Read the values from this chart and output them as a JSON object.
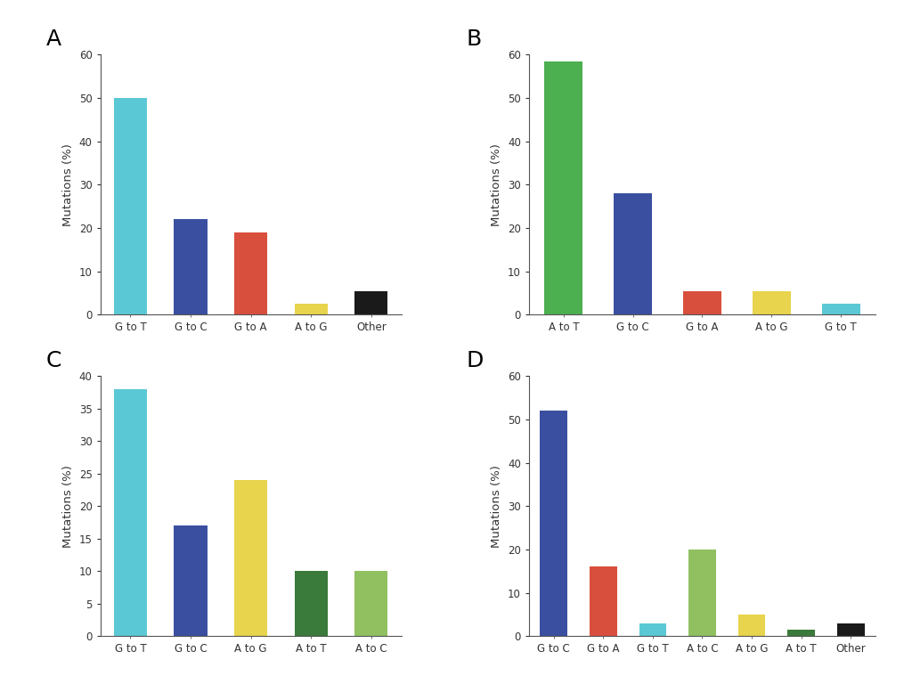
{
  "panels": [
    {
      "label": "A",
      "categories": [
        "G to T",
        "G to C",
        "G to A",
        "A to G",
        "Other"
      ],
      "values": [
        50,
        22,
        19,
        2.5,
        5.5
      ],
      "colors": [
        "#5BC8D5",
        "#3A4FA0",
        "#D94F3D",
        "#E8D44D",
        "#1A1A1A"
      ],
      "ylim": [
        0,
        60
      ],
      "yticks": [
        0,
        10,
        20,
        30,
        40,
        50,
        60
      ]
    },
    {
      "label": "B",
      "categories": [
        "A to T",
        "G to C",
        "G to A",
        "A to G",
        "G to T"
      ],
      "values": [
        58.5,
        28,
        5.5,
        5.5,
        2.5
      ],
      "colors": [
        "#4CAF50",
        "#3A4FA0",
        "#D94F3D",
        "#E8D44D",
        "#5BC8D5"
      ],
      "ylim": [
        0,
        60
      ],
      "yticks": [
        0,
        10,
        20,
        30,
        40,
        50,
        60
      ]
    },
    {
      "label": "C",
      "categories": [
        "G to T",
        "G to C",
        "A to G",
        "A to T",
        "A to C"
      ],
      "values": [
        38,
        17,
        24,
        10,
        10
      ],
      "colors": [
        "#5BC8D5",
        "#3A4FA0",
        "#E8D44D",
        "#3A7A3A",
        "#90C060"
      ],
      "ylim": [
        0,
        40
      ],
      "yticks": [
        0,
        5,
        10,
        15,
        20,
        25,
        30,
        35,
        40
      ]
    },
    {
      "label": "D",
      "categories": [
        "G to C",
        "G to A",
        "G to T",
        "A to C",
        "A to G",
        "A to T",
        "Other"
      ],
      "values": [
        52,
        16,
        3,
        20,
        5,
        1.5,
        3
      ],
      "colors": [
        "#3A4FA0",
        "#D94F3D",
        "#5BC8D5",
        "#90C060",
        "#E8D44D",
        "#3A7A3A",
        "#1A1A1A"
      ],
      "ylim": [
        0,
        60
      ],
      "yticks": [
        0,
        10,
        20,
        30,
        40,
        50,
        60
      ]
    }
  ],
  "ylabel": "Mutations (%)",
  "background_color": "#FFFFFF",
  "bar_width": 0.55,
  "label_fontsize": 18,
  "tick_fontsize": 8.5,
  "ylabel_fontsize": 9.5
}
